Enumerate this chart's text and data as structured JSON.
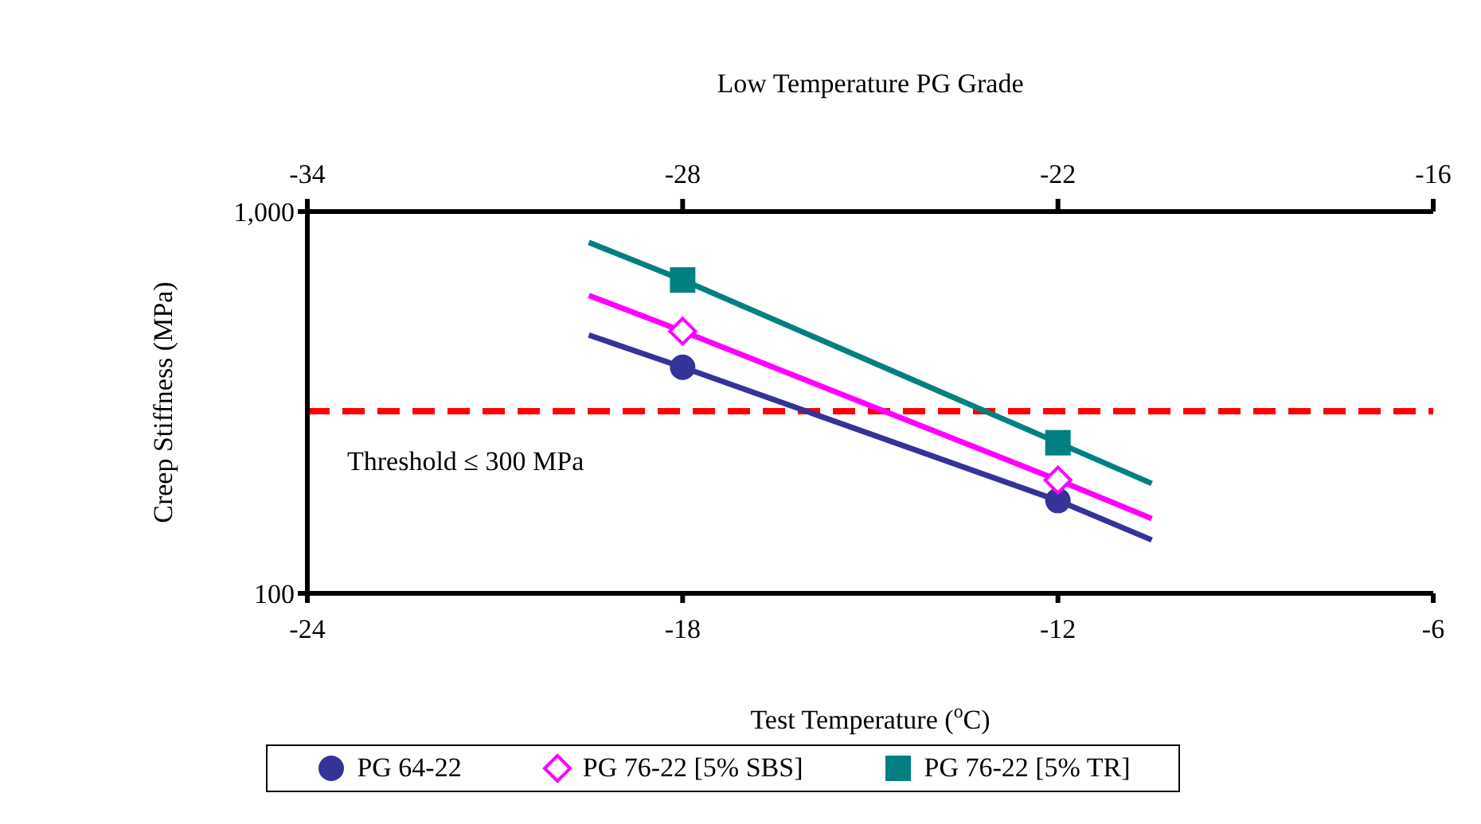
{
  "chart_data": {
    "type": "scatter",
    "xlabel": "Test Temperature ($^{o}$C)",
    "ylabel": "Creep Stiffness (MPa)",
    "x2label": "Low Temperature PG Grade",
    "xlim": [
      -24,
      -6
    ],
    "xticks": [
      -24,
      -18,
      -12,
      -6
    ],
    "x2lim": [
      -34,
      -16
    ],
    "x2ticks": [
      -34,
      -28,
      -22,
      -16
    ],
    "ylim": [
      100,
      1000
    ],
    "yticks": [
      100,
      {
        "value": 1000,
        "label": "1,000"
      }
    ],
    "log": true,
    "grid": false,
    "legend": "bottom",
    "series": [
      {
        "type": "line",
        "color": "#333399",
        "x": [
          -19.5,
          -18,
          -12,
          -10.5
        ],
        "values": [
          475,
          391,
          175,
          138
        ],
        "marker": "none"
      },
      {
        "type": "line",
        "color": "#ff00ff",
        "x": [
          -19.5,
          -18,
          -12,
          -10.5
        ],
        "values": [
          603,
          486,
          198,
          157
        ],
        "marker": "none"
      },
      {
        "type": "line",
        "color": "#008080",
        "x": [
          -19.5,
          -18,
          -12,
          -10.5
        ],
        "values": [
          830,
          662,
          248,
          194
        ],
        "marker": "none"
      },
      {
        "name": "PG 64-22",
        "color": "#333399",
        "x": [
          -18,
          -12
        ],
        "values": [
          391,
          175
        ],
        "marker": "circle"
      },
      {
        "name": "PG 76-22 [5% SBS]",
        "color": "#ff00ff",
        "x": [
          -18,
          -12
        ],
        "values": [
          486,
          198
        ],
        "marker": "diamond"
      },
      {
        "name": "PG 76-22 [5% TR]",
        "color": "#008080",
        "x": [
          -18,
          -12
        ],
        "values": [
          662,
          248
        ],
        "marker": "square"
      }
    ],
    "ref_lines": [
      {
        "axis": "y",
        "value": 300,
        "label": "Threshold ≤ 300 MPa",
        "color": "#ff0000",
        "line_style": "dashed"
      }
    ]
  }
}
